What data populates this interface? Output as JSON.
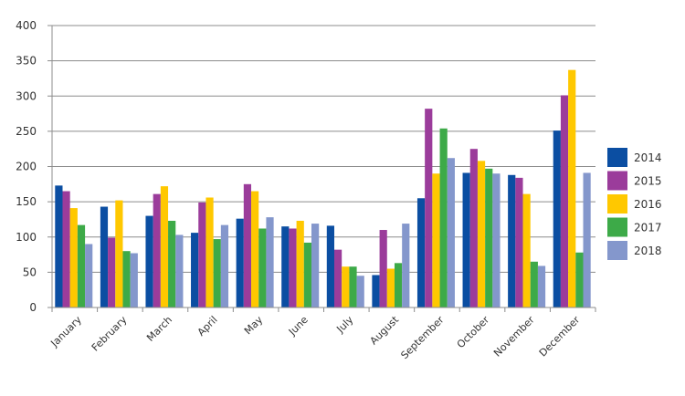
{
  "chart_data": {
    "type": "bar",
    "title": "",
    "xlabel": "",
    "ylabel": "",
    "ylim": [
      0,
      400
    ],
    "yticks": [
      0,
      50,
      100,
      150,
      200,
      250,
      300,
      350,
      400
    ],
    "grid": true,
    "legend_position": "right",
    "categories": [
      "January",
      "February",
      "March",
      "April",
      "May",
      "June",
      "July",
      "August",
      "September",
      "October",
      "November",
      "December"
    ],
    "series": [
      {
        "name": "2014",
        "color": "#0B4EA2",
        "values": [
          173,
          143,
          130,
          106,
          126,
          115,
          116,
          46,
          155,
          191,
          188,
          251
        ]
      },
      {
        "name": "2015",
        "color": "#9B3C9B",
        "values": [
          165,
          99,
          161,
          149,
          175,
          112,
          82,
          110,
          282,
          225,
          184,
          301
        ]
      },
      {
        "name": "2016",
        "color": "#FFC800",
        "values": [
          141,
          152,
          172,
          156,
          165,
          123,
          58,
          55,
          190,
          208,
          161,
          337
        ]
      },
      {
        "name": "2017",
        "color": "#3DAA48",
        "values": [
          117,
          80,
          123,
          97,
          112,
          92,
          58,
          63,
          254,
          197,
          65,
          78
        ]
      },
      {
        "name": "2018",
        "color": "#8497CC",
        "values": [
          90,
          77,
          103,
          117,
          128,
          119,
          45,
          119,
          212,
          190,
          59,
          191
        ]
      }
    ]
  }
}
